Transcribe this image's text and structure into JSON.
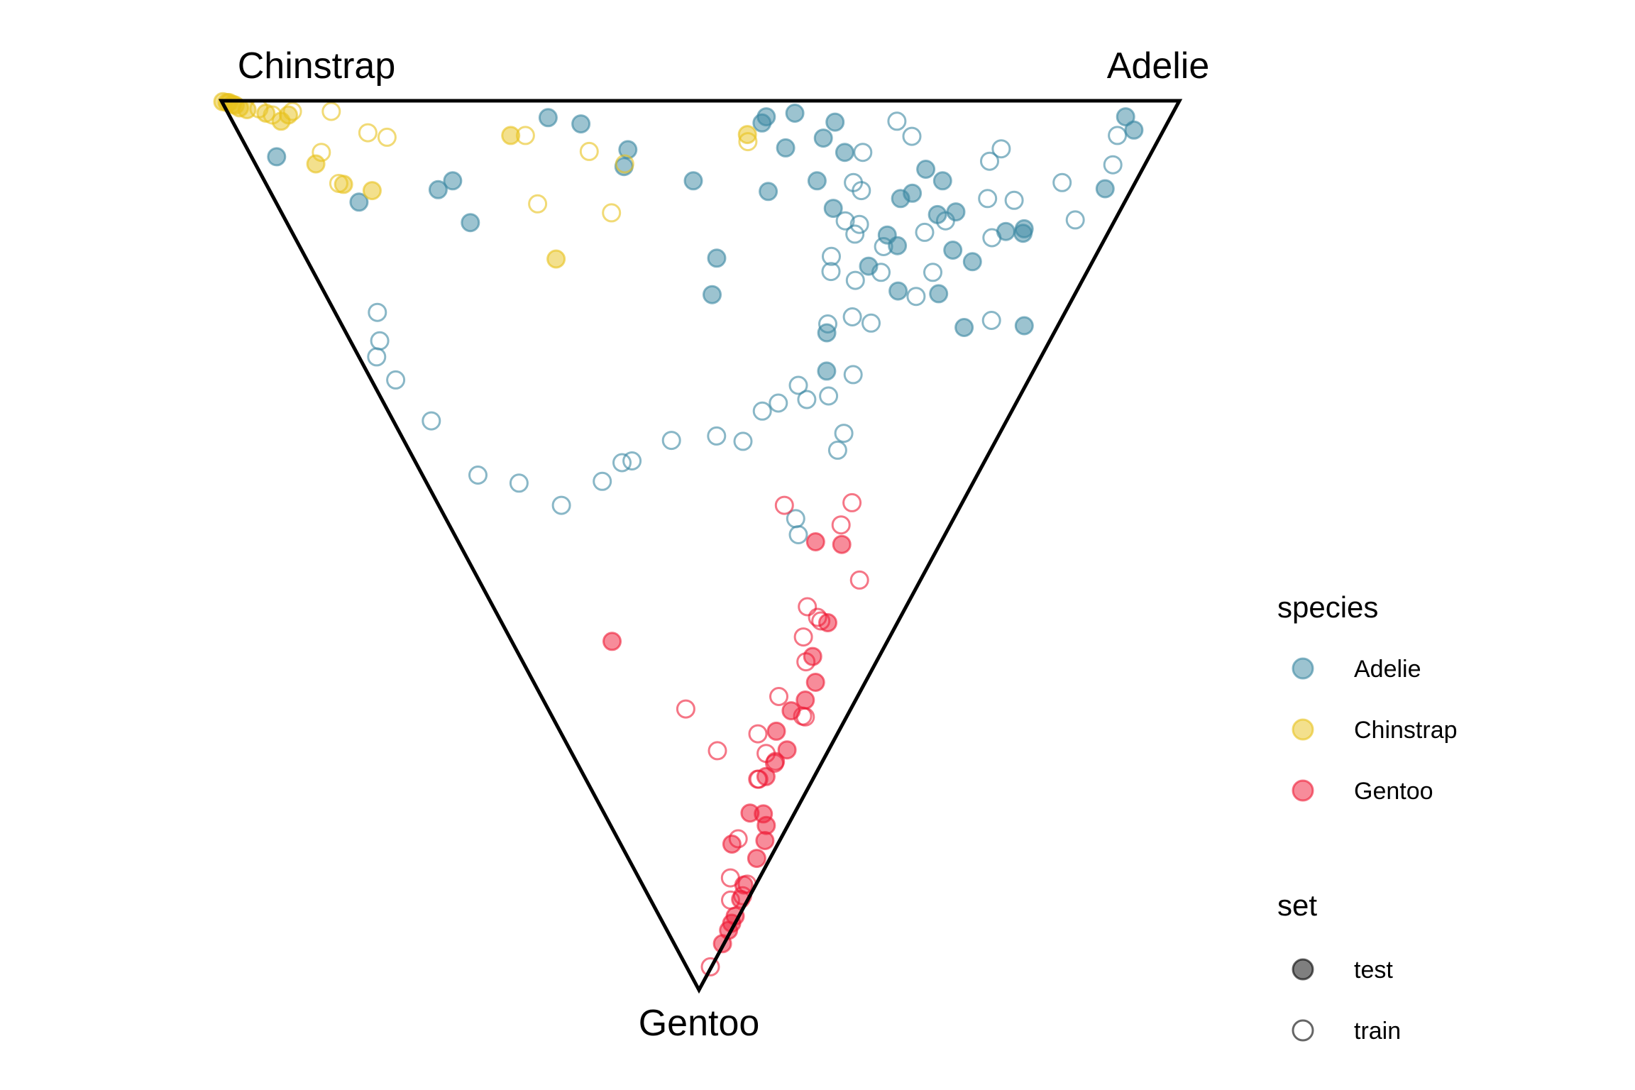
{
  "chart_data": {
    "type": "ternary-scatter",
    "vertices": {
      "top_left": "Chinstrap",
      "top_right": "Adelie",
      "bottom": "Gentoo"
    },
    "colors": {
      "Adelie": "#3a87a1",
      "Chinstrap": "#e8c21b",
      "Gentoo": "#ef1a35"
    },
    "legend": {
      "placement": "right",
      "species": {
        "title": "species",
        "items": [
          "Adelie",
          "Chinstrap",
          "Gentoo"
        ]
      },
      "set": {
        "title": "set",
        "items": [
          "test",
          "train"
        ]
      }
    },
    "series": [
      {
        "species": "Adelie",
        "test": [
          [
            0.033,
            0.032
          ],
          [
            0.018,
            0.048
          ],
          [
            0.099,
            0.031
          ],
          [
            0.144,
            0.105
          ],
          [
            0.149,
            0.104
          ],
          [
            0.253,
            0.047
          ],
          [
            0.147,
            0.126
          ],
          [
            0.255,
            0.13
          ],
          [
            0.181,
            0.153
          ],
          [
            0.168,
            0.183
          ],
          [
            0.217,
            0.182
          ],
          [
            0.125,
            0.195
          ],
          [
            0.09,
            0.222
          ],
          [
            0.128,
            0.216
          ],
          [
            0.077,
            0.245
          ],
          [
            0.104,
            0.253
          ],
          [
            0.163,
            0.254
          ],
          [
            0.214,
            0.237
          ],
          [
            0.11,
            0.265
          ],
          [
            0.151,
            0.27
          ],
          [
            0.186,
            0.284
          ],
          [
            0.261,
            0.321
          ],
          [
            0.304,
            0.31
          ],
          [
            0.121,
            0.342
          ],
          [
            0.058,
            0.34
          ],
          [
            0.09,
            0.366
          ],
          [
            0.024,
            0.356
          ],
          [
            0.042,
            0.366
          ],
          [
            0.014,
            0.4
          ],
          [
            0.053,
            0.406
          ],
          [
            0.018,
            0.43
          ],
          [
            0.102,
            0.421
          ],
          [
            0.025,
            0.434
          ],
          [
            0.177,
            0.479
          ],
          [
            0.218,
            0.484
          ],
          [
            0.09,
            0.508
          ],
          [
            0.055,
            0.58
          ],
          [
            0.074,
            0.586
          ],
          [
            0.026,
            0.628
          ],
          [
            0.019,
            0.662
          ],
          [
            0.09,
            0.784
          ],
          [
            0.1,
            0.804
          ],
          [
            0.137,
            0.778
          ],
          [
            0.114,
            0.902
          ],
          [
            0.063,
            0.972
          ]
        ],
        "train": [
          [
            0.039,
            0.047
          ],
          [
            0.072,
            0.036
          ],
          [
            0.134,
            0.048
          ],
          [
            0.092,
            0.084
          ],
          [
            0.112,
            0.131
          ],
          [
            0.154,
            0.14
          ],
          [
            0.068,
            0.176
          ],
          [
            0.11,
            0.163
          ],
          [
            0.247,
            0.096
          ],
          [
            0.054,
            0.168
          ],
          [
            0.135,
            0.204
          ],
          [
            0.193,
            0.199
          ],
          [
            0.148,
            0.225
          ],
          [
            0.023,
            0.29
          ],
          [
            0.22,
            0.211
          ],
          [
            0.04,
            0.27
          ],
          [
            0.193,
            0.266
          ],
          [
            0.139,
            0.307
          ],
          [
            0.164,
            0.271
          ],
          [
            0.15,
            0.31
          ],
          [
            0.25,
            0.262
          ],
          [
            0.101,
            0.313
          ],
          [
            0.092,
            0.324
          ],
          [
            0.058,
            0.32
          ],
          [
            0.135,
            0.325
          ],
          [
            0.202,
            0.297
          ],
          [
            0.243,
            0.29
          ],
          [
            0.192,
            0.331
          ],
          [
            0.175,
            0.334
          ],
          [
            0.251,
            0.322
          ],
          [
            0.308,
            0.269
          ],
          [
            0.332,
            0.299
          ],
          [
            0.336,
            0.332
          ],
          [
            0.32,
            0.349
          ],
          [
            0.393,
            0.263
          ],
          [
            0.374,
            0.26
          ],
          [
            0.34,
            0.376
          ],
          [
            0.349,
            0.4
          ],
          [
            0.383,
            0.427
          ],
          [
            0.47,
            0.311
          ],
          [
            0.488,
            0.299
          ],
          [
            0.377,
            0.472
          ],
          [
            0.382,
            0.548
          ],
          [
            0.405,
            0.619
          ],
          [
            0.407,
            0.637
          ],
          [
            0.428,
            0.678
          ],
          [
            0.455,
            0.765
          ],
          [
            0.43,
            0.831
          ],
          [
            0.421,
            0.9
          ],
          [
            0.36,
            0.938
          ],
          [
            0.27,
            0.958
          ],
          [
            0.314,
            0.963
          ],
          [
            0.288,
            0.974
          ],
          [
            0.238,
            0.942
          ]
        ]
      },
      {
        "species": "Chinstrap",
        "test": [
          [
            0.001,
            0.999
          ],
          [
            0.002,
            0.995
          ],
          [
            0.002,
            0.993
          ],
          [
            0.004,
            0.99
          ],
          [
            0.005,
            0.988
          ],
          [
            0.008,
            0.985
          ],
          [
            0.01,
            0.978
          ],
          [
            0.014,
            0.96
          ],
          [
            0.016,
            0.937
          ],
          [
            0.023,
            0.948
          ],
          [
            0.071,
            0.932
          ],
          [
            0.094,
            0.911
          ],
          [
            0.101,
            0.881
          ],
          [
            0.039,
            0.706
          ],
          [
            0.178,
            0.683
          ],
          [
            0.038,
            0.449
          ]
        ],
        "train": [
          [
            0.009,
            0.965
          ],
          [
            0.016,
            0.954
          ],
          [
            0.012,
            0.931
          ],
          [
            0.012,
            0.89
          ],
          [
            0.058,
            0.92
          ],
          [
            0.093,
            0.916
          ],
          [
            0.036,
            0.86
          ],
          [
            0.041,
            0.841
          ],
          [
            0.039,
            0.69
          ],
          [
            0.116,
            0.692
          ],
          [
            0.057,
            0.623
          ],
          [
            0.071,
            0.585
          ],
          [
            0.126,
            0.606
          ],
          [
            0.046,
            0.448
          ]
        ]
      },
      {
        "species": "Gentoo",
        "test": [
          [
            0.608,
            0.733
          ],
          [
            0.496,
            0.26
          ],
          [
            0.499,
            0.204
          ],
          [
            0.587,
            0.176
          ],
          [
            0.625,
            0.185
          ],
          [
            0.686,
            0.195
          ],
          [
            0.674,
            0.161
          ],
          [
            0.654,
            0.15
          ],
          [
            0.709,
            0.224
          ],
          [
            0.743,
            0.191
          ],
          [
            0.73,
            0.161
          ],
          [
            0.76,
            0.21
          ],
          [
            0.836,
            0.292
          ],
          [
            0.801,
            0.234
          ],
          [
            0.802,
            0.162
          ],
          [
            0.815,
            0.122
          ],
          [
            0.832,
            0.092
          ],
          [
            0.852,
            0.094
          ],
          [
            0.882,
            0.104
          ],
          [
            0.898,
            0.075
          ],
          [
            0.917,
            0.046
          ],
          [
            0.925,
            0.046
          ],
          [
            0.933,
            0.04
          ],
          [
            0.948,
            0.03
          ]
        ],
        "train": [
          [
            0.455,
            0.338
          ],
          [
            0.452,
            0.21
          ],
          [
            0.477,
            0.218
          ],
          [
            0.539,
            0.138
          ],
          [
            0.569,
            0.239
          ],
          [
            0.585,
            0.195
          ],
          [
            0.581,
            0.206
          ],
          [
            0.603,
            0.227
          ],
          [
            0.631,
            0.199
          ],
          [
            0.67,
            0.249
          ],
          [
            0.693,
            0.14
          ],
          [
            0.692,
            0.15
          ],
          [
            0.712,
            0.288
          ],
          [
            0.734,
            0.238
          ],
          [
            0.745,
            0.192
          ],
          [
            0.763,
            0.243
          ],
          [
            0.763,
            0.238
          ],
          [
            0.83,
            0.261
          ],
          [
            0.874,
            0.241
          ],
          [
            0.899,
            0.175
          ],
          [
            0.881,
            0.078
          ],
          [
            0.894,
            0.072
          ],
          [
            0.974,
            0.046
          ],
          [
            0.684,
            0.545
          ],
          [
            0.731,
            0.43
          ]
        ]
      }
    ]
  }
}
